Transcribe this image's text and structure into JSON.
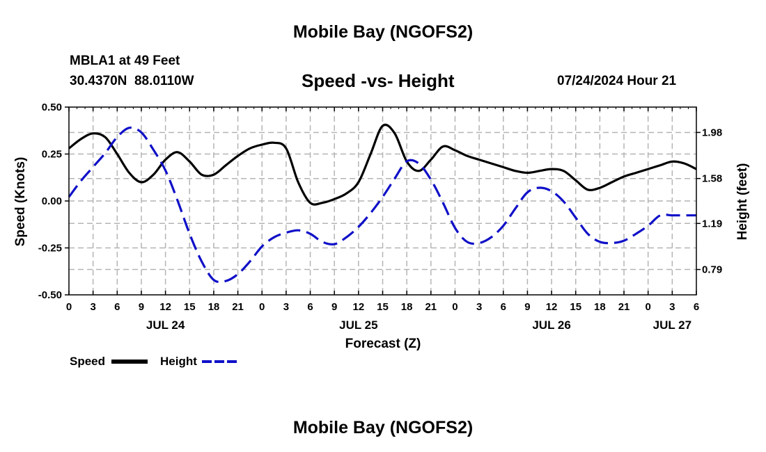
{
  "page": {
    "title": "Mobile Bay (NGOFS2)",
    "station_line": "MBLA1 at 49 Feet",
    "coords_line": "30.4370N  88.0110W",
    "subtitle": "Speed -vs- Height",
    "timestamp": "07/24/2024 Hour 21",
    "bottom_title": "Mobile Bay (NGOFS2)"
  },
  "legend": {
    "speed_label": "Speed",
    "height_label": "Height"
  },
  "colors": {
    "speed": "#000000",
    "height": "#1010c8",
    "grid": "#b4b4b4"
  },
  "chart_data": {
    "type": "line",
    "xlabel": "Forecast (Z)",
    "ylabel_left": "Speed (Knots)",
    "ylabel_right": "Height (feet)",
    "xlim": [
      0,
      78
    ],
    "ylim_left": [
      -0.5,
      0.5
    ],
    "ylim_right": [
      0.57,
      2.2
    ],
    "x_tick_labels": [
      "0",
      "3",
      "6",
      "9",
      "12",
      "15",
      "18",
      "21",
      "0",
      "3",
      "6",
      "9",
      "12",
      "15",
      "18",
      "21",
      "0",
      "3",
      "6",
      "9",
      "12",
      "15",
      "18",
      "21",
      "0",
      "3",
      "6"
    ],
    "left_tick_labels": [
      "0.50",
      "0.25",
      "0.00",
      "-0.25",
      "-0.50"
    ],
    "right_tick_labels": [
      "1.98",
      "1.58",
      "1.19",
      "0.79"
    ],
    "date_labels": [
      {
        "label": "JUL 24",
        "hour": 12
      },
      {
        "label": "JUL 25",
        "hour": 36
      },
      {
        "label": "JUL 26",
        "hour": 60
      },
      {
        "label": "JUL 27",
        "hour": 75
      }
    ],
    "grid": true,
    "series": [
      {
        "name": "Speed",
        "axis": "left",
        "style": "solid",
        "x": [
          0,
          1.5,
          3,
          4.5,
          6,
          7.5,
          9,
          10.5,
          12,
          13.5,
          15,
          16.5,
          18,
          19.5,
          21,
          22.5,
          24,
          25.5,
          27,
          28.5,
          30,
          31.5,
          33,
          34.5,
          36,
          37.5,
          39,
          40.5,
          42,
          43.5,
          45,
          46.5,
          48,
          49.5,
          51,
          52.5,
          54,
          55.5,
          57,
          58.5,
          60,
          61.5,
          63,
          64.5,
          66,
          67.5,
          69,
          70.5,
          72,
          73.5,
          75,
          76.5,
          78
        ],
        "values": [
          0.28,
          0.33,
          0.36,
          0.34,
          0.25,
          0.15,
          0.1,
          0.14,
          0.22,
          0.26,
          0.21,
          0.14,
          0.14,
          0.19,
          0.24,
          0.28,
          0.3,
          0.31,
          0.28,
          0.1,
          -0.01,
          -0.01,
          0.01,
          0.04,
          0.1,
          0.25,
          0.4,
          0.36,
          0.21,
          0.16,
          0.22,
          0.29,
          0.27,
          0.24,
          0.22,
          0.2,
          0.18,
          0.16,
          0.15,
          0.16,
          0.17,
          0.16,
          0.11,
          0.06,
          0.07,
          0.1,
          0.13,
          0.15,
          0.17,
          0.19,
          0.21,
          0.2,
          0.17
        ]
      },
      {
        "name": "Height",
        "axis": "right",
        "style": "dashed",
        "x": [
          0,
          1.5,
          3,
          4.5,
          6,
          7.5,
          9,
          10.5,
          12,
          13.5,
          15,
          16.5,
          18,
          19.5,
          21,
          22.5,
          24,
          25.5,
          27,
          28.5,
          30,
          31.5,
          33,
          34.5,
          36,
          37.5,
          39,
          40.5,
          42,
          43.5,
          45,
          46.5,
          48,
          49.5,
          51,
          52.5,
          54,
          55.5,
          57,
          58.5,
          60,
          61.5,
          63,
          64.5,
          66,
          67.5,
          69,
          70.5,
          72,
          73.5,
          75,
          76.5,
          78
        ],
        "values": [
          1.42,
          1.56,
          1.68,
          1.8,
          1.94,
          2.02,
          1.98,
          1.83,
          1.65,
          1.39,
          1.1,
          0.86,
          0.7,
          0.69,
          0.75,
          0.86,
          0.99,
          1.07,
          1.11,
          1.13,
          1.1,
          1.03,
          1.01,
          1.07,
          1.16,
          1.28,
          1.42,
          1.58,
          1.73,
          1.71,
          1.57,
          1.37,
          1.15,
          1.03,
          1.02,
          1.07,
          1.17,
          1.32,
          1.46,
          1.5,
          1.47,
          1.38,
          1.24,
          1.1,
          1.03,
          1.02,
          1.04,
          1.1,
          1.17,
          1.26,
          1.26,
          1.26,
          1.26
        ]
      }
    ]
  }
}
